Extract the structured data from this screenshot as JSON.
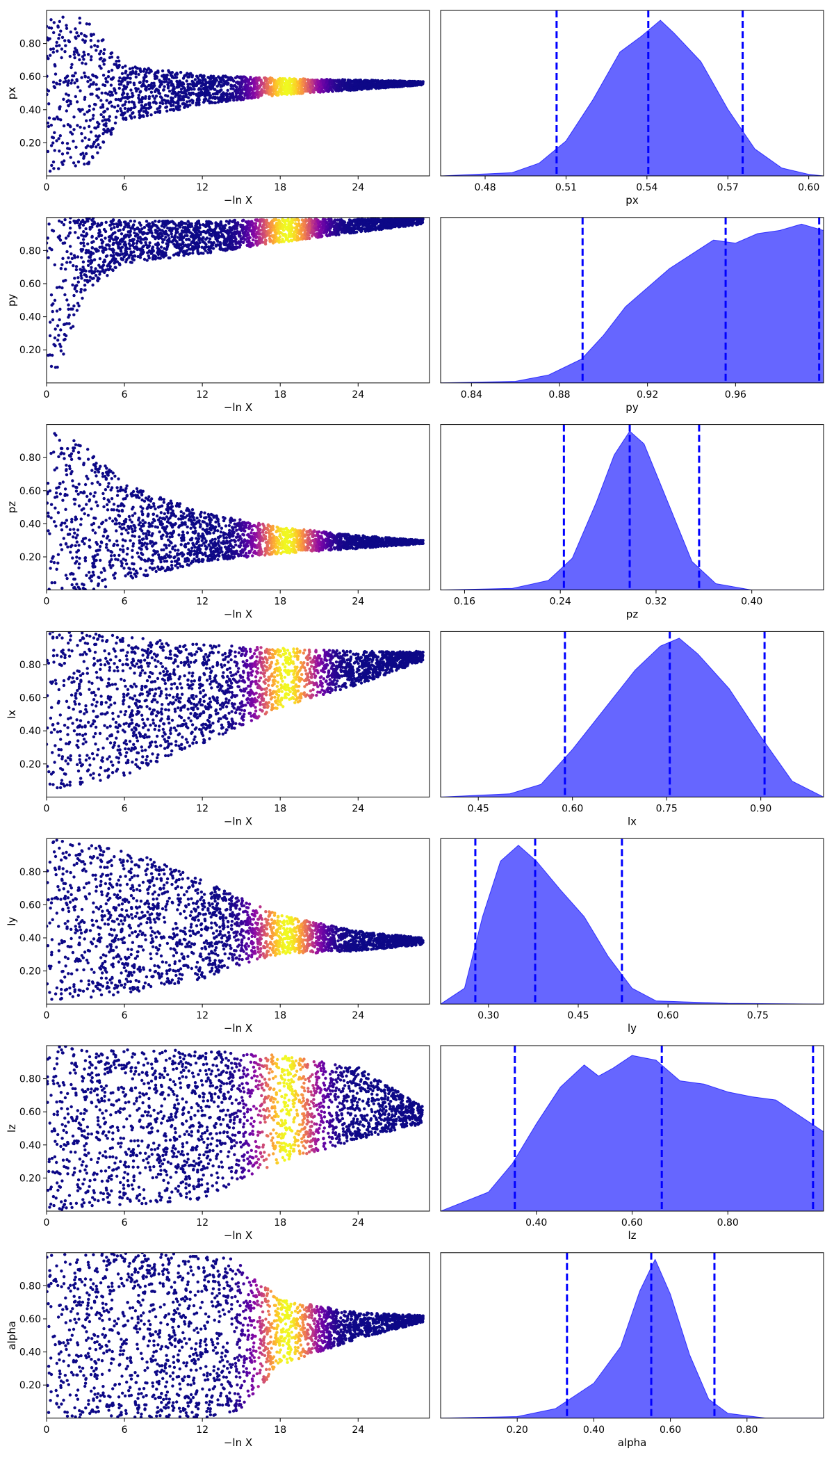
{
  "figure": {
    "trace_xlabel": "−ln X",
    "colors": {
      "kde_fill": "#0000ff",
      "kde_fill_opacity": 0.6,
      "quantile_line": "#0000ff",
      "trace_colormap": "plasma"
    }
  },
  "chart_data": [
    {
      "type": "scatter",
      "panel": "trace",
      "param": "px",
      "title": "",
      "xlabel": "−ln X",
      "ylabel": "px",
      "xlim": [
        0,
        29.5
      ],
      "ylim": [
        0,
        1
      ],
      "xticks": [
        0,
        6,
        12,
        18,
        24
      ],
      "yticks": [
        0.2,
        0.4,
        0.6,
        0.8
      ],
      "width_profile": [
        [
          0,
          0.5,
          0.48
        ],
        [
          3,
          0.5,
          0.45
        ],
        [
          6,
          0.5,
          0.17
        ],
        [
          12,
          0.52,
          0.09
        ],
        [
          18,
          0.54,
          0.05
        ],
        [
          24,
          0.55,
          0.03
        ],
        [
          29,
          0.56,
          0.01
        ]
      ],
      "color_peak_x": 18.5
    },
    {
      "type": "area",
      "panel": "posterior",
      "param": "px",
      "xlabel": "px",
      "ylabel": "",
      "xlim": [
        0.4635,
        0.6055
      ],
      "xticks": [
        0.48,
        0.51,
        0.54,
        0.57,
        0.6
      ],
      "quantiles": [
        0.5065,
        0.5405,
        0.5755
      ],
      "density": [
        [
          0.4635,
          0.0
        ],
        [
          0.49,
          0.02
        ],
        [
          0.5,
          0.08
        ],
        [
          0.51,
          0.22
        ],
        [
          0.52,
          0.48
        ],
        [
          0.53,
          0.78
        ],
        [
          0.538,
          0.88
        ],
        [
          0.545,
          0.98
        ],
        [
          0.55,
          0.9
        ],
        [
          0.56,
          0.72
        ],
        [
          0.57,
          0.42
        ],
        [
          0.58,
          0.17
        ],
        [
          0.59,
          0.05
        ],
        [
          0.6,
          0.01
        ],
        [
          0.6055,
          0.0
        ]
      ]
    },
    {
      "type": "scatter",
      "panel": "trace",
      "param": "py",
      "title": "",
      "xlabel": "−ln X",
      "ylabel": "py",
      "xlim": [
        0,
        29.5
      ],
      "ylim": [
        0,
        1
      ],
      "xticks": [
        0,
        6,
        12,
        18,
        24
      ],
      "yticks": [
        0.2,
        0.4,
        0.6,
        0.8
      ],
      "width_profile": [
        [
          0,
          0.5,
          0.5
        ],
        [
          1,
          0.55,
          0.45
        ],
        [
          3,
          0.78,
          0.22
        ],
        [
          6,
          0.85,
          0.13
        ],
        [
          12,
          0.88,
          0.1
        ],
        [
          18,
          0.92,
          0.07
        ],
        [
          24,
          0.95,
          0.04
        ],
        [
          29,
          0.98,
          0.02
        ]
      ],
      "color_peak_x": 18.5
    },
    {
      "type": "area",
      "panel": "posterior",
      "param": "py",
      "xlabel": "py",
      "ylabel": "",
      "xlim": [
        0.826,
        1.0
      ],
      "xticks": [
        0.84,
        0.88,
        0.92,
        0.96
      ],
      "quantiles": [
        0.8905,
        0.9555,
        0.998
      ],
      "density": [
        [
          0.826,
          0.0
        ],
        [
          0.86,
          0.01
        ],
        [
          0.875,
          0.05
        ],
        [
          0.89,
          0.15
        ],
        [
          0.9,
          0.3
        ],
        [
          0.91,
          0.48
        ],
        [
          0.93,
          0.72
        ],
        [
          0.95,
          0.9
        ],
        [
          0.96,
          0.88
        ],
        [
          0.97,
          0.94
        ],
        [
          0.98,
          0.96
        ],
        [
          0.99,
          1.0
        ],
        [
          1.0,
          0.96
        ]
      ]
    },
    {
      "type": "scatter",
      "panel": "trace",
      "param": "pz",
      "title": "",
      "xlabel": "−ln X",
      "ylabel": "pz",
      "xlim": [
        0,
        29.5
      ],
      "ylim": [
        0,
        1
      ],
      "xticks": [
        0,
        6,
        12,
        18,
        24
      ],
      "yticks": [
        0.2,
        0.4,
        0.6,
        0.8
      ],
      "width_profile": [
        [
          0,
          0.5,
          0.5
        ],
        [
          3,
          0.42,
          0.45
        ],
        [
          6,
          0.35,
          0.3
        ],
        [
          12,
          0.32,
          0.15
        ],
        [
          18,
          0.3,
          0.08
        ],
        [
          24,
          0.29,
          0.04
        ],
        [
          29,
          0.29,
          0.01
        ]
      ],
      "color_peak_x": 18.5
    },
    {
      "type": "area",
      "panel": "posterior",
      "param": "pz",
      "xlabel": "pz",
      "ylabel": "",
      "xlim": [
        0.14,
        0.46
      ],
      "xticks": [
        0.16,
        0.24,
        0.32,
        0.4
      ],
      "quantiles": [
        0.243,
        0.298,
        0.356
      ],
      "density": [
        [
          0.14,
          0.0
        ],
        [
          0.2,
          0.01
        ],
        [
          0.23,
          0.06
        ],
        [
          0.25,
          0.2
        ],
        [
          0.27,
          0.55
        ],
        [
          0.285,
          0.85
        ],
        [
          0.298,
          1.0
        ],
        [
          0.31,
          0.92
        ],
        [
          0.33,
          0.55
        ],
        [
          0.35,
          0.18
        ],
        [
          0.37,
          0.04
        ],
        [
          0.4,
          0.0
        ],
        [
          0.46,
          0.0
        ]
      ]
    },
    {
      "type": "scatter",
      "panel": "trace",
      "param": "lx",
      "title": "",
      "xlabel": "−ln X",
      "ylabel": "lx",
      "xlim": [
        0,
        29.5
      ],
      "ylim": [
        0,
        1
      ],
      "xticks": [
        0,
        6,
        12,
        18,
        24
      ],
      "yticks": [
        0.2,
        0.4,
        0.6,
        0.8
      ],
      "width_profile": [
        [
          0,
          0.52,
          0.5
        ],
        [
          6,
          0.55,
          0.42
        ],
        [
          12,
          0.62,
          0.3
        ],
        [
          18,
          0.72,
          0.18
        ],
        [
          24,
          0.78,
          0.1
        ],
        [
          29,
          0.85,
          0.03
        ]
      ],
      "color_peak_x": 18.5
    },
    {
      "type": "area",
      "panel": "posterior",
      "param": "lx",
      "xlabel": "lx",
      "ylabel": "",
      "xlim": [
        0.39,
        1.0
      ],
      "xticks": [
        0.45,
        0.6,
        0.75,
        0.9
      ],
      "quantiles": [
        0.588,
        0.755,
        0.906
      ],
      "density": [
        [
          0.39,
          0.0
        ],
        [
          0.5,
          0.02
        ],
        [
          0.55,
          0.08
        ],
        [
          0.6,
          0.3
        ],
        [
          0.65,
          0.55
        ],
        [
          0.7,
          0.8
        ],
        [
          0.74,
          0.95
        ],
        [
          0.77,
          1.0
        ],
        [
          0.8,
          0.9
        ],
        [
          0.85,
          0.68
        ],
        [
          0.9,
          0.38
        ],
        [
          0.95,
          0.1
        ],
        [
          1.0,
          0.0
        ]
      ]
    },
    {
      "type": "scatter",
      "panel": "trace",
      "param": "ly",
      "title": "",
      "xlabel": "−ln X",
      "ylabel": "ly",
      "xlim": [
        0,
        29.5
      ],
      "ylim": [
        0,
        1
      ],
      "xticks": [
        0,
        6,
        12,
        18,
        24
      ],
      "yticks": [
        0.2,
        0.4,
        0.6,
        0.8
      ],
      "width_profile": [
        [
          0,
          0.5,
          0.5
        ],
        [
          6,
          0.5,
          0.44
        ],
        [
          12,
          0.45,
          0.3
        ],
        [
          15,
          0.44,
          0.2
        ],
        [
          18,
          0.42,
          0.12
        ],
        [
          24,
          0.38,
          0.06
        ],
        [
          29,
          0.38,
          0.02
        ]
      ],
      "color_peak_x": 18.5
    },
    {
      "type": "area",
      "panel": "posterior",
      "param": "ly",
      "xlabel": "ly",
      "ylabel": "",
      "xlim": [
        0.22,
        0.86
      ],
      "xticks": [
        0.3,
        0.45,
        0.6,
        0.75
      ],
      "quantiles": [
        0.278,
        0.378,
        0.523
      ],
      "density": [
        [
          0.22,
          0.0
        ],
        [
          0.26,
          0.1
        ],
        [
          0.29,
          0.55
        ],
        [
          0.32,
          0.9
        ],
        [
          0.35,
          1.0
        ],
        [
          0.38,
          0.9
        ],
        [
          0.42,
          0.72
        ],
        [
          0.46,
          0.55
        ],
        [
          0.5,
          0.3
        ],
        [
          0.54,
          0.1
        ],
        [
          0.58,
          0.02
        ],
        [
          0.7,
          0.005
        ],
        [
          0.86,
          0.0
        ]
      ]
    },
    {
      "type": "scatter",
      "panel": "trace",
      "param": "lz",
      "title": "",
      "xlabel": "−ln X",
      "ylabel": "lz",
      "xlim": [
        0,
        29.5
      ],
      "ylim": [
        0,
        1
      ],
      "xticks": [
        0,
        6,
        12,
        18,
        24
      ],
      "yticks": [
        0.2,
        0.4,
        0.6,
        0.8
      ],
      "width_profile": [
        [
          0,
          0.5,
          0.5
        ],
        [
          12,
          0.52,
          0.45
        ],
        [
          18,
          0.62,
          0.32
        ],
        [
          24,
          0.65,
          0.22
        ],
        [
          29,
          0.58,
          0.05
        ]
      ],
      "color_peak_x": 18.5
    },
    {
      "type": "area",
      "panel": "posterior",
      "param": "lz",
      "xlabel": "lz",
      "ylabel": "",
      "xlim": [
        0.2,
        1.0
      ],
      "xticks": [
        0.4,
        0.6,
        0.8
      ],
      "quantiles": [
        0.355,
        0.662,
        0.978
      ],
      "density": [
        [
          0.2,
          0.0
        ],
        [
          0.3,
          0.12
        ],
        [
          0.35,
          0.3
        ],
        [
          0.4,
          0.55
        ],
        [
          0.45,
          0.78
        ],
        [
          0.5,
          0.92
        ],
        [
          0.53,
          0.85
        ],
        [
          0.56,
          0.9
        ],
        [
          0.6,
          0.98
        ],
        [
          0.65,
          0.95
        ],
        [
          0.7,
          0.82
        ],
        [
          0.75,
          0.8
        ],
        [
          0.8,
          0.75
        ],
        [
          0.85,
          0.72
        ],
        [
          0.9,
          0.7
        ],
        [
          0.95,
          0.6
        ],
        [
          1.0,
          0.5
        ]
      ]
    },
    {
      "type": "scatter",
      "panel": "trace",
      "param": "alpha",
      "title": "",
      "xlabel": "−ln X",
      "ylabel": "alpha",
      "xlim": [
        0,
        29.5
      ],
      "ylim": [
        0,
        1
      ],
      "xticks": [
        0,
        6,
        12,
        18,
        24
      ],
      "yticks": [
        0.2,
        0.4,
        0.6,
        0.8
      ],
      "width_profile": [
        [
          0,
          0.5,
          0.5
        ],
        [
          12,
          0.5,
          0.5
        ],
        [
          15,
          0.5,
          0.45
        ],
        [
          18,
          0.52,
          0.2
        ],
        [
          24,
          0.56,
          0.08
        ],
        [
          29,
          0.6,
          0.02
        ]
      ],
      "color_peak_x": 18.5
    },
    {
      "type": "area",
      "panel": "posterior",
      "param": "alpha",
      "xlabel": "alpha",
      "ylabel": "",
      "xlim": [
        0.0,
        1.0
      ],
      "xticks": [
        0.2,
        0.4,
        0.6,
        0.8
      ],
      "quantiles": [
        0.33,
        0.55,
        0.715
      ],
      "density": [
        [
          0.0,
          0.0
        ],
        [
          0.2,
          0.01
        ],
        [
          0.3,
          0.06
        ],
        [
          0.4,
          0.22
        ],
        [
          0.47,
          0.45
        ],
        [
          0.52,
          0.8
        ],
        [
          0.56,
          1.0
        ],
        [
          0.6,
          0.78
        ],
        [
          0.65,
          0.4
        ],
        [
          0.7,
          0.12
        ],
        [
          0.75,
          0.03
        ],
        [
          0.85,
          0.0
        ],
        [
          1.0,
          0.0
        ]
      ]
    }
  ]
}
